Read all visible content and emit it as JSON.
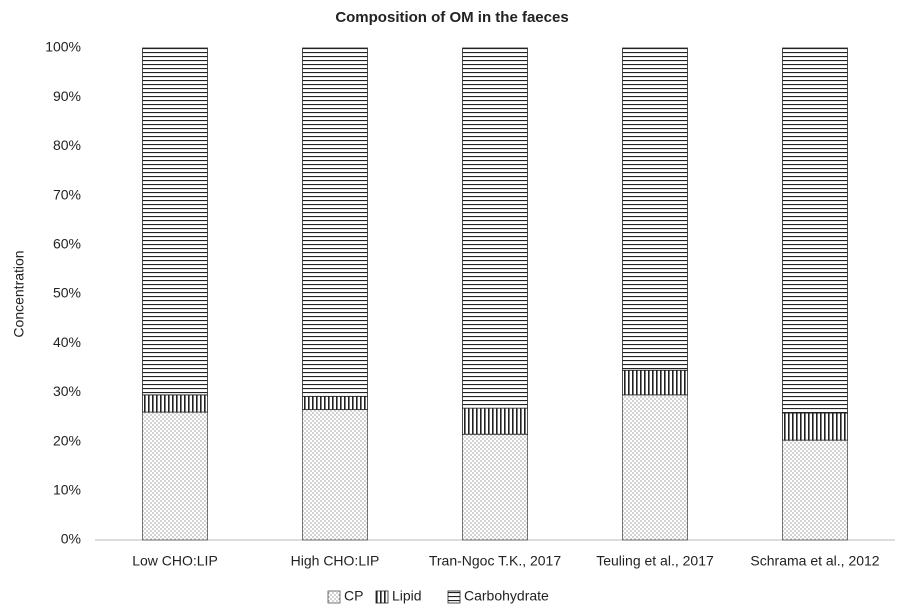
{
  "chart_data": {
    "type": "stacked_bar",
    "title": "Composition of OM in the faeces",
    "ylabel": "Concentration",
    "categories": [
      "Low CHO:LIP",
      "High CHO:LIP",
      "Tran-Ngoc T.K., 2017",
      "Teuling et al., 2017",
      "Schrama et al., 2012"
    ],
    "series": [
      {
        "name": "CP",
        "color": "#555555",
        "pattern": "dots",
        "values": [
          26,
          26.5,
          21.5,
          29.5,
          20.3
        ]
      },
      {
        "name": "Lipid",
        "color": "#222222",
        "pattern": "vertical",
        "values": [
          3.5,
          2.7,
          5.3,
          5,
          5.5
        ]
      },
      {
        "name": "Carbohydrate",
        "color": "#222222",
        "pattern": "horizontal",
        "values": [
          70.5,
          70.8,
          73.2,
          65.5,
          74.2
        ]
      }
    ],
    "ylim": [
      0,
      100
    ],
    "yticks": [
      {
        "value": 0,
        "label": "0%"
      },
      {
        "value": 10,
        "label": "10%"
      },
      {
        "value": 20,
        "label": "20%"
      },
      {
        "value": 30,
        "label": "30%"
      },
      {
        "value": 40,
        "label": "40%"
      },
      {
        "value": 50,
        "label": "50%"
      },
      {
        "value": 60,
        "label": "60%"
      },
      {
        "value": 70,
        "label": "70%"
      },
      {
        "value": 80,
        "label": "80%"
      },
      {
        "value": 90,
        "label": "90%"
      },
      {
        "value": 100,
        "label": "100%"
      }
    ],
    "grid": false,
    "legend": "bottom"
  }
}
